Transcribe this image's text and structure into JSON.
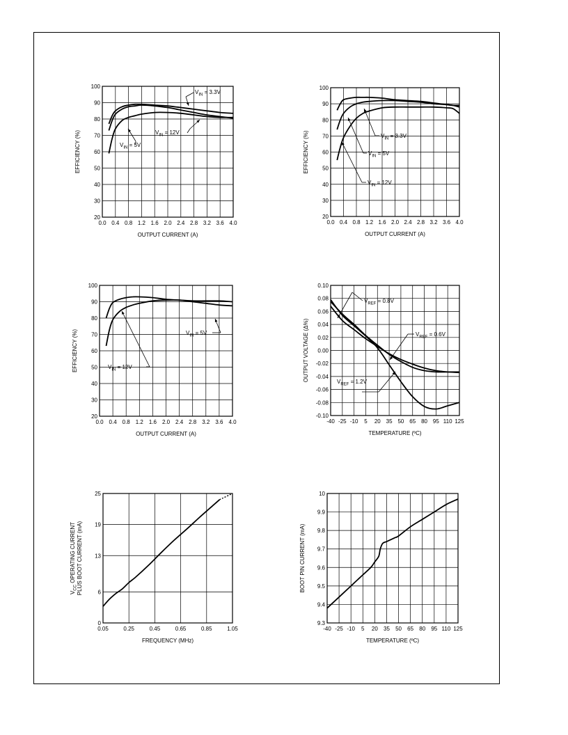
{
  "chart_data": [
    {
      "type": "line",
      "xlabel": "OUTPUT CURRENT (A)",
      "ylabel": "EFFICIENCY (%)",
      "xlim": [
        0,
        4
      ],
      "ylim": [
        20,
        100
      ],
      "xticks": [
        0.0,
        0.4,
        0.8,
        1.2,
        1.6,
        2.0,
        2.4,
        2.8,
        3.2,
        3.6,
        4.0
      ],
      "xtick_labels": [
        "0.0",
        "0.4",
        "0.8",
        "1.2",
        "1.6",
        "2.0",
        "2.4",
        "2.8",
        "3.2",
        "3.6",
        "4.0"
      ],
      "yticks": [
        20,
        30,
        40,
        50,
        60,
        70,
        80,
        90,
        100
      ],
      "ytick_labels": [
        "20",
        "30",
        "40",
        "50",
        "60",
        "70",
        "80",
        "90",
        "100"
      ],
      "grid": true,
      "series": [
        {
          "name": "VIN = 3.3V",
          "x": [
            0.2,
            0.3,
            0.4,
            0.6,
            0.8,
            1.0,
            1.2,
            1.6,
            2.0,
            2.4,
            2.8,
            3.2,
            3.6,
            4.0
          ],
          "y": [
            77,
            82,
            85,
            87.5,
            88.5,
            89,
            89,
            88.5,
            88,
            87,
            86,
            85,
            84,
            83.5
          ]
        },
        {
          "name": "VIN = 5V",
          "x": [
            0.2,
            0.3,
            0.4,
            0.6,
            0.8,
            1.0,
            1.2,
            1.6,
            2.0,
            2.4,
            2.8,
            3.2,
            3.6,
            4.0
          ],
          "y": [
            73,
            79,
            83,
            86,
            87.5,
            88,
            88.5,
            88,
            87,
            85.5,
            84,
            82.5,
            81.5,
            80.5
          ]
        },
        {
          "name": "VIN = 12V",
          "x": [
            0.2,
            0.3,
            0.4,
            0.6,
            0.8,
            1.0,
            1.2,
            1.6,
            2.0,
            2.4,
            2.8,
            3.2,
            3.6,
            4.0
          ],
          "y": [
            59,
            68,
            74,
            79,
            81,
            82,
            83,
            84,
            84,
            83.5,
            82.5,
            81.5,
            81,
            81
          ]
        }
      ],
      "annotations": [
        {
          "main": "V",
          "sub": "IN",
          "rest": " = 3.3V"
        },
        {
          "main": "V",
          "sub": "IN",
          "rest": " = 12V"
        },
        {
          "main": "V",
          "sub": "IN",
          "rest": " = 5V"
        }
      ]
    },
    {
      "type": "line",
      "xlabel": "OUTPUT CURRENT (A)",
      "ylabel": "EFFICIENCY (%)",
      "xlim": [
        0,
        4
      ],
      "ylim": [
        20,
        100
      ],
      "xticks": [
        0.0,
        0.4,
        0.8,
        1.2,
        1.6,
        2.0,
        2.4,
        2.8,
        3.2,
        3.6,
        4.0
      ],
      "xtick_labels": [
        "0.0",
        "0.4",
        "0.8",
        "1.2",
        "1.6",
        "2.0",
        "2.4",
        "2.8",
        "3.2",
        "3.6",
        "4.0"
      ],
      "yticks": [
        20,
        30,
        40,
        50,
        60,
        70,
        80,
        90,
        100
      ],
      "ytick_labels": [
        "20",
        "30",
        "40",
        "50",
        "60",
        "70",
        "80",
        "90",
        "100"
      ],
      "grid": true,
      "series": [
        {
          "name": "VIN = 3.3V",
          "x": [
            0.2,
            0.3,
            0.4,
            0.6,
            0.8,
            1.0,
            1.2,
            1.6,
            2.0,
            2.4,
            2.8,
            3.2,
            3.6,
            3.8,
            4.0
          ],
          "y": [
            86,
            90,
            92.5,
            93.5,
            94,
            94,
            94,
            93.5,
            92.5,
            92,
            91.5,
            90.5,
            89.5,
            89,
            88
          ]
        },
        {
          "name": "VIN = 5V",
          "x": [
            0.2,
            0.3,
            0.4,
            0.6,
            0.8,
            1.0,
            1.2,
            1.6,
            2.0,
            2.4,
            2.8,
            3.2,
            3.6,
            3.8,
            4.0
          ],
          "y": [
            74,
            80,
            84,
            88,
            90,
            91,
            91.5,
            92,
            92,
            91.5,
            91,
            90,
            89.5,
            89,
            89
          ]
        },
        {
          "name": "VIN = 12V",
          "x": [
            0.2,
            0.3,
            0.4,
            0.6,
            0.8,
            1.0,
            1.2,
            1.6,
            2.0,
            2.4,
            2.8,
            3.2,
            3.6,
            3.8,
            4.0
          ],
          "y": [
            55,
            63,
            69,
            76,
            81,
            84,
            85.5,
            87.5,
            88,
            88,
            88,
            88,
            87.5,
            87,
            84
          ]
        }
      ],
      "annotations": [
        {
          "main": "V",
          "sub": "IN",
          "rest": " = 3.3V"
        },
        {
          "main": "V",
          "sub": "IN",
          "rest": " = 5V"
        },
        {
          "main": "V",
          "sub": "IN",
          "rest": " = 12V"
        }
      ]
    },
    {
      "type": "line",
      "xlabel": "OUTPUT CURRENT (A)",
      "ylabel": "EFFICIENCY (%)",
      "xlim": [
        0,
        4
      ],
      "ylim": [
        20,
        100
      ],
      "xticks": [
        0.0,
        0.4,
        0.8,
        1.2,
        1.6,
        2.0,
        2.4,
        2.8,
        3.2,
        3.6,
        4.0
      ],
      "xtick_labels": [
        "0.0",
        "0.4",
        "0.8",
        "1.2",
        "1.6",
        "2.0",
        "2.4",
        "2.8",
        "3.2",
        "3.6",
        "4.0"
      ],
      "yticks": [
        20,
        30,
        40,
        50,
        60,
        70,
        80,
        90,
        100
      ],
      "ytick_labels": [
        "20",
        "30",
        "40",
        "50",
        "60",
        "70",
        "80",
        "90",
        "100"
      ],
      "grid": true,
      "series": [
        {
          "name": "VIN = 5V",
          "x": [
            0.2,
            0.3,
            0.4,
            0.6,
            0.8,
            1.0,
            1.2,
            1.6,
            2.0,
            2.4,
            2.8,
            3.2,
            3.6,
            4.0
          ],
          "y": [
            80,
            86,
            89.5,
            91.5,
            92.5,
            93,
            93,
            92.5,
            91.5,
            91,
            90.5,
            90.5,
            90.5,
            90
          ]
        },
        {
          "name": "VIN = 12V",
          "x": [
            0.2,
            0.3,
            0.4,
            0.6,
            0.8,
            1.0,
            1.2,
            1.6,
            2.0,
            2.4,
            2.8,
            3.2,
            3.6,
            4.0
          ],
          "y": [
            63,
            73,
            79,
            84,
            86.5,
            88,
            89,
            90.5,
            91,
            91,
            90,
            89,
            88,
            87.5
          ]
        }
      ],
      "annotations": [
        {
          "main": "V",
          "sub": "IN",
          "rest": " = 5V"
        },
        {
          "main": "V",
          "sub": "IN",
          "rest": " = 12V"
        }
      ]
    },
    {
      "type": "line",
      "xlabel": "TEMPERATURE (ºC)",
      "ylabel": "OUTPUT VOLTAGE (Δ%)",
      "xlim": [
        -40,
        125
      ],
      "ylim": [
        -0.1,
        0.1
      ],
      "xticks": [
        -40,
        -25,
        -10,
        5,
        20,
        35,
        50,
        65,
        80,
        95,
        110,
        125
      ],
      "xtick_labels": [
        "-40",
        "-25",
        "-10",
        "5",
        "20",
        "35",
        "50",
        "65",
        "80",
        "95",
        "110",
        "125"
      ],
      "yticks": [
        -0.1,
        -0.08,
        -0.06,
        -0.04,
        -0.02,
        0.0,
        0.02,
        0.04,
        0.06,
        0.08,
        0.1
      ],
      "ytick_labels": [
        "-0.10",
        "-0.08",
        "-0.06",
        "-0.04",
        "-0.02",
        "0.00",
        "0.02",
        "0.04",
        "0.06",
        "0.08",
        "0.10"
      ],
      "grid": true,
      "series": [
        {
          "name": "VREF = 0.8V",
          "x": [
            -40,
            -25,
            -10,
            5,
            20,
            35,
            50,
            65,
            80,
            95,
            110,
            125
          ],
          "y": [
            0.075,
            0.056,
            0.04,
            0.023,
            0.008,
            -0.006,
            -0.017,
            -0.026,
            -0.031,
            -0.033,
            -0.033,
            -0.033
          ]
        },
        {
          "name": "VREF = 0.6V",
          "x": [
            -40,
            -25,
            -10,
            5,
            20,
            35,
            50,
            65,
            80,
            95,
            110,
            125
          ],
          "y": [
            0.068,
            0.046,
            0.032,
            0.018,
            0.006,
            -0.005,
            -0.014,
            -0.021,
            -0.027,
            -0.031,
            -0.033,
            -0.034
          ]
        },
        {
          "name": "VREF = 1.2V",
          "x": [
            -40,
            -25,
            -10,
            5,
            20,
            35,
            50,
            65,
            80,
            95,
            110,
            125
          ],
          "y": [
            0.078,
            0.054,
            0.038,
            0.022,
            0.004,
            -0.022,
            -0.048,
            -0.071,
            -0.086,
            -0.09,
            -0.085,
            -0.08
          ]
        }
      ],
      "annotations": [
        {
          "main": "V",
          "sub": "REF",
          "rest": " = 0.8V"
        },
        {
          "main": "V",
          "sub": "REF",
          "rest": " = 0.6V"
        },
        {
          "main": "V",
          "sub": "REF",
          "rest": " = 1.2V"
        }
      ]
    },
    {
      "type": "line",
      "xlabel": "FREQUENCY (MHz)",
      "ylabel": [
        "V",
        "CC",
        " OPERATING CURRENT",
        "PLUS BOOT CURRENT (mA)"
      ],
      "xlim": [
        0.05,
        1.05
      ],
      "ylim": [
        0,
        25
      ],
      "xticks": [
        0.05,
        0.25,
        0.45,
        0.65,
        0.85,
        1.05
      ],
      "xtick_labels": [
        "0.05",
        "0.25",
        "0.45",
        "0.65",
        "0.85",
        "1.05"
      ],
      "yticks": [
        0,
        6,
        13,
        19,
        25
      ],
      "ytick_labels": [
        "0",
        "6",
        "13",
        "19",
        "25"
      ],
      "grid": true,
      "series": [
        {
          "name": "",
          "x": [
            0.05,
            0.1,
            0.15,
            0.2,
            0.25,
            0.3,
            0.4,
            0.5,
            0.6,
            0.7,
            0.8,
            0.9,
            0.95
          ],
          "y": [
            3.2,
            4.6,
            5.7,
            6.6,
            7.8,
            8.8,
            11.1,
            13.6,
            16.0,
            18.2,
            20.5,
            22.7,
            23.8
          ]
        },
        {
          "name": "",
          "dashed": true,
          "x": [
            0.95,
            1.05
          ],
          "y": [
            23.8,
            25.0
          ]
        }
      ]
    },
    {
      "type": "line",
      "xlabel": "TEMPERATURE (ºC)",
      "ylabel": "BOOT PIN CURRENT (mA)",
      "xlim": [
        -40,
        125
      ],
      "ylim": [
        9.3,
        10.0
      ],
      "xticks": [
        -40,
        -25,
        -10,
        5,
        20,
        35,
        50,
        65,
        80,
        95,
        110,
        125
      ],
      "xtick_labels": [
        "-40",
        "-25",
        "-10",
        "5",
        "20",
        "35",
        "50",
        "65",
        "80",
        "95",
        "110",
        "125"
      ],
      "yticks": [
        9.3,
        9.4,
        9.5,
        9.6,
        9.7,
        9.8,
        9.9,
        10.0
      ],
      "ytick_labels": [
        "9.3",
        "9.4",
        "9.5",
        "9.6",
        "9.7",
        "9.8",
        "9.9",
        "10"
      ],
      "grid": true,
      "series": [
        {
          "name": "",
          "x": [
            -40,
            -25,
            -10,
            0,
            5,
            15,
            20,
            25,
            27,
            30,
            35,
            45,
            50,
            65,
            80,
            95,
            110,
            125
          ],
          "y": [
            9.38,
            9.44,
            9.5,
            9.54,
            9.56,
            9.6,
            9.63,
            9.66,
            9.7,
            9.73,
            9.74,
            9.76,
            9.77,
            9.82,
            9.86,
            9.9,
            9.94,
            9.97
          ]
        }
      ]
    }
  ]
}
